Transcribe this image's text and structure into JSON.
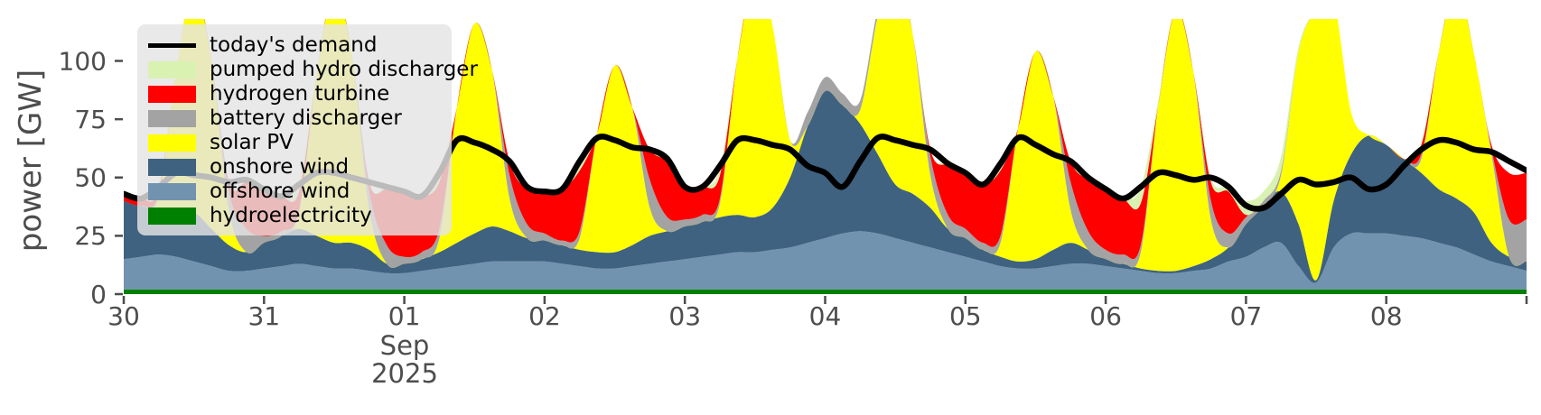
{
  "figure": {
    "background": "#ffffff",
    "ylabel": "power [GW]",
    "x_month_label": "Sep",
    "x_year_label": "2025",
    "tick_color": "#4d4d4d"
  },
  "chart_data": {
    "type": "area",
    "stacked": true,
    "title": "",
    "ylabel": "power [GW]",
    "xlabel": "Sep 2025",
    "ylim": [
      0,
      118
    ],
    "y_ticks": [
      0,
      25,
      50,
      75,
      100
    ],
    "x_tick_labels": [
      "30",
      "31",
      "01",
      "02",
      "03",
      "04",
      "05",
      "06",
      "07",
      "08"
    ],
    "x_days_total": 10,
    "sample_step_hours": 3,
    "grid": false,
    "legend_position": "upper left",
    "legend": [
      {
        "label": "today's demand",
        "color": "#000000",
        "kind": "line"
      },
      {
        "label": "pumped hydro discharger",
        "color": "#d9f2b2",
        "kind": "patch"
      },
      {
        "label": "hydrogen turbine",
        "color": "#ff0000",
        "kind": "patch"
      },
      {
        "label": "battery discharger",
        "color": "#a3a3a3",
        "kind": "patch"
      },
      {
        "label": "solar PV",
        "color": "#ffff00",
        "kind": "patch"
      },
      {
        "label": "onshore wind",
        "color": "#3f6281",
        "kind": "patch"
      },
      {
        "label": "offshore wind",
        "color": "#7193b0",
        "kind": "patch"
      },
      {
        "label": "hydroelectricity",
        "color": "#008000",
        "kind": "patch"
      }
    ],
    "stack_order": [
      "hydroelectricity",
      "offshore wind",
      "onshore wind",
      "solar PV",
      "battery discharger",
      "hydrogen turbine",
      "pumped hydro discharger"
    ],
    "series": [
      {
        "name": "hydroelectricity",
        "color": "#008000",
        "values": [
          2,
          2,
          2,
          2,
          2,
          2,
          2,
          2,
          2,
          2,
          2,
          2,
          2,
          2,
          2,
          2,
          2,
          2,
          2,
          2,
          2,
          2,
          2,
          2,
          2,
          2,
          2,
          2,
          2,
          2,
          2,
          2,
          2,
          2,
          2,
          2,
          2,
          2,
          2,
          2,
          2,
          2,
          2,
          2,
          2,
          2,
          2,
          2,
          2,
          2,
          2,
          2,
          2,
          2,
          2,
          2,
          2,
          2,
          2,
          2,
          2,
          2,
          2,
          2,
          2,
          2,
          2,
          2,
          2,
          2,
          2,
          2,
          2,
          2,
          2,
          2,
          2,
          2,
          2,
          2,
          2
        ]
      },
      {
        "name": "offshore wind",
        "color": "#7193b0",
        "values": [
          13,
          14,
          15,
          14,
          12,
          10,
          8,
          8,
          9,
          10,
          11,
          10,
          9,
          9,
          8,
          7,
          7,
          8,
          9,
          10,
          11,
          12,
          12,
          12,
          12,
          11,
          10,
          9,
          9,
          10,
          11,
          12,
          13,
          14,
          15,
          16,
          16,
          17,
          18,
          20,
          22,
          24,
          25,
          24,
          22,
          20,
          18,
          16,
          14,
          12,
          10,
          9,
          9,
          10,
          11,
          11,
          10,
          9,
          8,
          7,
          7,
          8,
          9,
          12,
          14,
          18,
          20,
          10,
          3,
          18,
          24,
          24,
          24,
          23,
          22,
          20,
          18,
          15,
          12,
          10,
          8
        ]
      },
      {
        "name": "onshore wind",
        "color": "#3f6281",
        "values": [
          25,
          22,
          19,
          18,
          21,
          16,
          11,
          8,
          11,
          13,
          15,
          13,
          11,
          11,
          9,
          4,
          4,
          5,
          7,
          10,
          13,
          15,
          13,
          10,
          9,
          8,
          7,
          7,
          7,
          9,
          12,
          13,
          14,
          15,
          16,
          16,
          15,
          18,
          30,
          50,
          63,
          55,
          46,
          34,
          23,
          21,
          17,
          10,
          8,
          5,
          4,
          3,
          4,
          7,
          9,
          6,
          3,
          2,
          1,
          1,
          1,
          2,
          4,
          6,
          14,
          18,
          22,
          18,
          1,
          20,
          34,
          42,
          38,
          33,
          28,
          23,
          21,
          18,
          8,
          4,
          4
        ]
      },
      {
        "name": "solar PV",
        "color": "#ffff00",
        "values": [
          0,
          0,
          6,
          62,
          97,
          72,
          15,
          0,
          0,
          0,
          7,
          69,
          109,
          81,
          17,
          0,
          0,
          0,
          6,
          58,
          90,
          67,
          14,
          0,
          0,
          0,
          5,
          51,
          80,
          59,
          12,
          0,
          0,
          0,
          6,
          67,
          105,
          78,
          16,
          0,
          0,
          0,
          6,
          59,
          92,
          68,
          14,
          0,
          0,
          0,
          6,
          57,
          89,
          66,
          14,
          0,
          0,
          0,
          7,
          71,
          112,
          83,
          17,
          0,
          0,
          0,
          7,
          74,
          116,
          86,
          18,
          0,
          0,
          0,
          6,
          59,
          92,
          68,
          38,
          0,
          0
        ]
      },
      {
        "name": "battery discharger",
        "color": "#a3a3a3",
        "values": [
          0,
          0,
          1,
          0,
          0,
          0,
          8,
          10,
          3,
          2,
          1,
          0,
          0,
          0,
          8,
          8,
          3,
          3,
          4,
          0,
          0,
          0,
          10,
          6,
          3,
          2,
          3,
          0,
          0,
          0,
          12,
          6,
          3,
          3,
          2,
          0,
          0,
          0,
          0,
          6,
          6,
          5,
          4,
          3,
          0,
          0,
          8,
          6,
          4,
          3,
          3,
          0,
          0,
          0,
          12,
          8,
          4,
          4,
          3,
          0,
          0,
          0,
          8,
          6,
          3,
          2,
          2,
          0,
          0,
          0,
          0,
          0,
          0,
          0,
          2,
          0,
          0,
          0,
          2,
          16,
          18
        ]
      },
      {
        "name": "hydrogen turbine",
        "color": "#ff0000",
        "values": [
          3,
          3,
          2,
          0,
          0,
          0,
          4,
          20,
          20,
          15,
          8,
          0,
          0,
          0,
          4,
          24,
          28,
          24,
          20,
          0,
          0,
          0,
          6,
          15,
          18,
          22,
          26,
          0,
          0,
          0,
          13,
          24,
          14,
          12,
          10,
          0,
          0,
          0,
          0,
          0,
          0,
          0,
          0,
          0,
          0,
          0,
          3,
          21,
          24,
          25,
          28,
          0,
          0,
          0,
          9,
          22,
          26,
          24,
          18,
          0,
          0,
          0,
          8,
          18,
          1,
          0,
          0,
          0,
          0,
          0,
          0,
          0,
          0,
          0,
          4,
          0,
          0,
          0,
          2,
          20,
          20
        ]
      },
      {
        "name": "pumped hydro discharger",
        "color": "#d9f2b2",
        "values": [
          0,
          0,
          2,
          0,
          0,
          0,
          0,
          1,
          0,
          0,
          4,
          0,
          0,
          0,
          0,
          1,
          0,
          0,
          4,
          0,
          0,
          0,
          0,
          1,
          0,
          0,
          4,
          0,
          0,
          0,
          0,
          1,
          0,
          0,
          3,
          0,
          0,
          0,
          0,
          0,
          0,
          0,
          0,
          0,
          0,
          0,
          0,
          1,
          0,
          0,
          3,
          0,
          0,
          0,
          0,
          1,
          0,
          0,
          7,
          2,
          0,
          0,
          2,
          2,
          6,
          4,
          6,
          2,
          0,
          0,
          0,
          0,
          0,
          0,
          1,
          0,
          0,
          0,
          0,
          0,
          0
        ]
      }
    ],
    "line_series": {
      "name": "today's demand",
      "color": "#000000",
      "width": 6.5,
      "values": [
        43,
        41,
        46,
        52,
        51,
        50,
        48,
        49,
        45,
        42,
        47,
        52,
        52,
        50,
        48,
        46,
        44,
        42,
        52,
        66,
        65,
        62,
        57,
        46,
        44,
        45,
        57,
        67,
        66,
        63,
        62,
        58,
        46,
        46,
        55,
        66,
        66,
        64,
        62,
        55,
        52,
        46,
        57,
        67,
        66,
        64,
        62,
        56,
        52,
        47,
        56,
        67,
        64,
        60,
        57,
        50,
        45,
        41,
        46,
        52,
        51,
        49,
        50,
        46,
        38,
        37,
        43,
        49,
        47,
        48,
        50,
        45,
        47,
        55,
        62,
        66,
        65,
        62,
        61,
        57,
        53
      ]
    }
  }
}
